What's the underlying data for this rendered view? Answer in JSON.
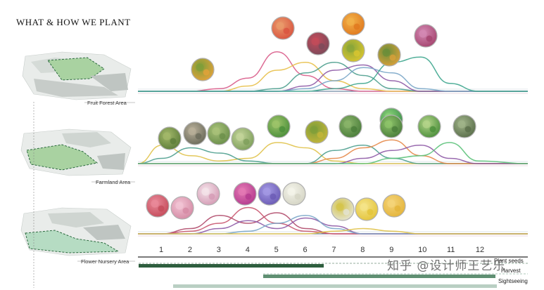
{
  "page": {
    "title": "WHAT & HOW WE PLANT"
  },
  "areas": [
    {
      "label": "Fruit Forest Area"
    },
    {
      "label": "Farmland Area"
    },
    {
      "label": "Flower Nursery  Area"
    }
  ],
  "months": [
    "1",
    "2",
    "3",
    "4",
    "5",
    "6",
    "7",
    "8",
    "9",
    "10",
    "11",
    "12"
  ],
  "legend": [
    {
      "label": "Plant seeds",
      "color": "#2e5e3e"
    },
    {
      "label": "Harvest",
      "color": "#5f8f72"
    },
    {
      "label": "Sightseeing",
      "color": "#b9cfc3"
    }
  ],
  "watermark": "知乎 @设计师王艺乐",
  "chart_data": [
    {
      "type": "line",
      "title": "Fruit Forest Area",
      "x": [
        1,
        2,
        3,
        4,
        5,
        6,
        7,
        8,
        9,
        10,
        11,
        12
      ],
      "series": [
        {
          "name": "",
          "color": "#d95c8a",
          "values": [
            0,
            0,
            0.05,
            0.25,
            0.75,
            0.3,
            0.05,
            0,
            0,
            0,
            0,
            0
          ]
        },
        {
          "name": "",
          "color": "#e8c04a",
          "values": [
            0,
            0,
            0,
            0.1,
            0.4,
            0.55,
            0.2,
            0.05,
            0,
            0,
            0,
            0
          ]
        },
        {
          "name": "",
          "color": "#4d9e8e",
          "values": [
            0,
            0,
            0,
            0,
            0.05,
            0.35,
            0.55,
            0.3,
            0.05,
            0,
            0,
            0
          ]
        },
        {
          "name": "",
          "color": "#8e5aa6",
          "values": [
            0,
            0,
            0,
            0,
            0,
            0.1,
            0.4,
            0.5,
            0.2,
            0,
            0,
            0
          ]
        },
        {
          "name": "",
          "color": "#7aa6c8",
          "values": [
            0,
            0,
            0,
            0,
            0,
            0.05,
            0.2,
            0.45,
            0.35,
            0.05,
            0,
            0
          ]
        },
        {
          "name": "",
          "color": "#3ea68e",
          "values": [
            0,
            0,
            0,
            0,
            0,
            0,
            0.05,
            0.15,
            0.55,
            0.65,
            0.15,
            0
          ]
        }
      ]
    },
    {
      "type": "line",
      "title": "Farmland Area",
      "x": [
        1,
        2,
        3,
        4,
        5,
        6,
        7,
        8,
        9,
        10,
        11,
        12
      ],
      "series": [
        {
          "name": "",
          "color": "#e0c24a",
          "values": [
            0.35,
            0.15,
            0.05,
            0.1,
            0.4,
            0.3,
            0.05,
            0,
            0,
            0,
            0,
            0
          ]
        },
        {
          "name": "",
          "color": "#4d9e8e",
          "values": [
            0.1,
            0.3,
            0.2,
            0.05,
            0,
            0,
            0.25,
            0.35,
            0.1,
            0,
            0,
            0
          ]
        },
        {
          "name": "",
          "color": "#e58a4a",
          "values": [
            0,
            0,
            0,
            0,
            0,
            0,
            0.1,
            0.3,
            0.45,
            0.15,
            0,
            0
          ]
        },
        {
          "name": "",
          "color": "#8e5aa6",
          "values": [
            0,
            0,
            0,
            0,
            0,
            0,
            0,
            0.1,
            0.25,
            0.35,
            0.1,
            0
          ]
        },
        {
          "name": "",
          "color": "#5cc27a",
          "values": [
            0,
            0,
            0,
            0,
            0,
            0,
            0,
            0,
            0.1,
            0.15,
            0.4,
            0.05
          ]
        }
      ]
    },
    {
      "type": "line",
      "title": "Flower Nursery Area",
      "x": [
        1,
        2,
        3,
        4,
        5,
        6,
        7,
        8,
        9,
        10,
        11,
        12
      ],
      "series": [
        {
          "name": "",
          "color": "#b04a6a",
          "values": [
            0,
            0.1,
            0.35,
            0.2,
            0.4,
            0.1,
            0,
            0,
            0,
            0,
            0,
            0
          ]
        },
        {
          "name": "",
          "color": "#c9566f",
          "values": [
            0,
            0.05,
            0.2,
            0.5,
            0.2,
            0.05,
            0,
            0,
            0,
            0,
            0,
            0
          ]
        },
        {
          "name": "",
          "color": "#8e5aa6",
          "values": [
            0,
            0,
            0.1,
            0.25,
            0.1,
            0.3,
            0.15,
            0,
            0,
            0,
            0,
            0
          ]
        },
        {
          "name": "",
          "color": "#7aa6c8",
          "values": [
            0,
            0,
            0,
            0.05,
            0.2,
            0.35,
            0.1,
            0,
            0,
            0,
            0,
            0
          ]
        },
        {
          "name": "",
          "color": "#e0c24a",
          "values": [
            0,
            0,
            0,
            0,
            0,
            0,
            0.05,
            0.1,
            0.05,
            0,
            0,
            0
          ]
        }
      ]
    }
  ],
  "circles": {
    "fruit": [
      {
        "color": "#e3a23a",
        "accent": "#7d9e3a"
      },
      {
        "color": "#d9533f",
        "accent": "#e99b6b"
      },
      {
        "color": "#7b4a5a",
        "accent": "#c44b5a"
      },
      {
        "color": "#e0781e",
        "accent": "#f2b24a"
      },
      {
        "color": "#d9c52f",
        "accent": "#8aa63a"
      },
      {
        "color": "#d9a03a",
        "accent": "#6a8e3a"
      },
      {
        "color": "#a4446e",
        "accent": "#d48ab4"
      }
    ],
    "farm": [
      {
        "color": "#5d7d3a",
        "accent": "#a3b86a"
      },
      {
        "color": "#6a6a5a",
        "accent": "#b9b09a"
      },
      {
        "color": "#6a8e4a",
        "accent": "#a9c27a"
      },
      {
        "color": "#7d9e5a",
        "accent": "#c3d49a"
      },
      {
        "color": "#4a8e3a",
        "accent": "#9ec46a"
      },
      {
        "color": "#c4b53a",
        "accent": "#7d9e3a"
      },
      {
        "color": "#4a7d3a",
        "accent": "#8ab46a"
      },
      {
        "color": "#3a8e4a",
        "accent": "#8ed47a"
      },
      {
        "color": "#4a8e3a",
        "accent": "#b4d48a"
      },
      {
        "color": "#5a6e4a",
        "accent": "#a0b48a"
      },
      {
        "color": "#4a7d3a",
        "accent": "#8ec46a"
      }
    ],
    "flower": [
      {
        "color": "#c44b5a",
        "accent": "#e98a9a"
      },
      {
        "color": "#d48aa4",
        "accent": "#f2c4d4"
      },
      {
        "color": "#d49ab4",
        "accent": "#f4e4ea"
      },
      {
        "color": "#b43a8e",
        "accent": "#e47ab4"
      },
      {
        "color": "#6a5ab4",
        "accent": "#a49ae4"
      },
      {
        "color": "#d4d4c4",
        "accent": "#f4f4ea"
      },
      {
        "color": "#e4e4d4",
        "accent": "#d4c44a"
      },
      {
        "color": "#e4c43a",
        "accent": "#f4e48a"
      },
      {
        "color": "#e4b43a",
        "accent": "#f4d47a"
      }
    ]
  }
}
